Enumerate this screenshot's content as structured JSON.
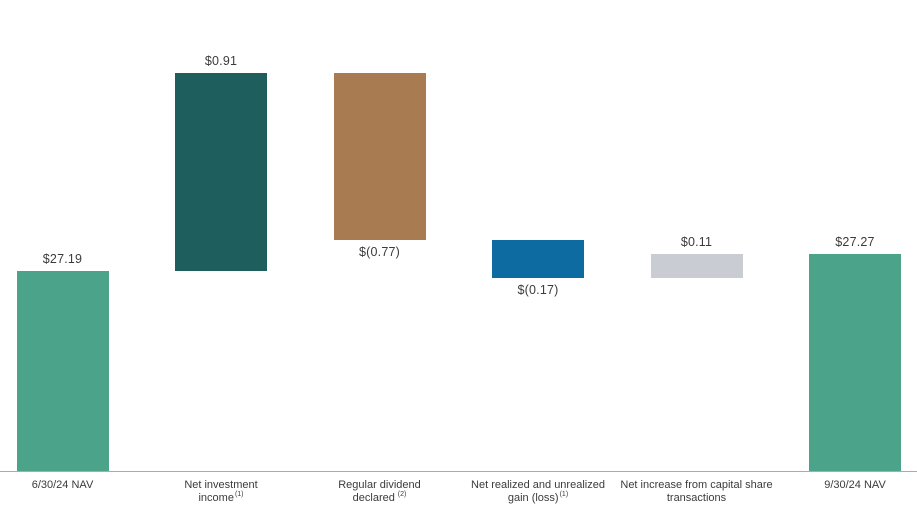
{
  "chart_data": {
    "type": "waterfall",
    "title": "",
    "xlabel": "",
    "ylabel": "",
    "grid": false,
    "legend": false,
    "baseline_axis_visible": true,
    "start_value": 27.19,
    "end_value": 27.27,
    "categories": [
      "6/30/24 NAV",
      "Net investment income (1)",
      "Regular dividend declared (2)",
      "Net realized and unrealized gain (loss) (1)",
      "Net increase from capital share transactions",
      "9/30/24 NAV"
    ],
    "values": [
      27.19,
      0.91,
      -0.77,
      -0.17,
      0.11,
      27.27
    ],
    "bars": [
      {
        "category_lines": [
          "6/30/24 NAV"
        ],
        "footnote": "",
        "value": 27.19,
        "display_value": "$27.19",
        "kind": "total",
        "color": "#4ba389",
        "label_position": "above"
      },
      {
        "category_lines": [
          "Net investment",
          "income"
        ],
        "footnote": "(1)",
        "value": 0.91,
        "display_value": "$0.91",
        "kind": "increase",
        "color": "#1e5f5e",
        "label_position": "above"
      },
      {
        "category_lines": [
          "Regular dividend",
          "declared"
        ],
        "footnote": " (2)",
        "value": -0.77,
        "display_value": "$(0.77)",
        "kind": "decrease",
        "color": "#a87c50",
        "label_position": "below"
      },
      {
        "category_lines": [
          "Net realized and unrealized",
          "gain (loss)"
        ],
        "footnote": "(1)",
        "value": -0.17,
        "display_value": "$(0.17)",
        "kind": "decrease",
        "color": "#0e6ba2",
        "label_position": "below"
      },
      {
        "category_lines": [
          "Net increase from capital share",
          "transactions"
        ],
        "footnote": "",
        "value": 0.11,
        "display_value": "$0.11",
        "kind": "increase",
        "color": "#c9ccd3",
        "label_position": "above"
      },
      {
        "category_lines": [
          "9/30/24 NAV"
        ],
        "footnote": "",
        "value": 27.27,
        "display_value": "$27.27",
        "kind": "total",
        "color": "#4ba389",
        "label_position": "above"
      }
    ],
    "colors": {
      "nav_total": "#4ba389",
      "net_investment_income": "#1e5f5e",
      "dividend_declared": "#a87c50",
      "realized_unrealized": "#0e6ba2",
      "capital_share": "#c9ccd3",
      "axis_line": "#ababab",
      "text": "#3b3b3b"
    }
  }
}
